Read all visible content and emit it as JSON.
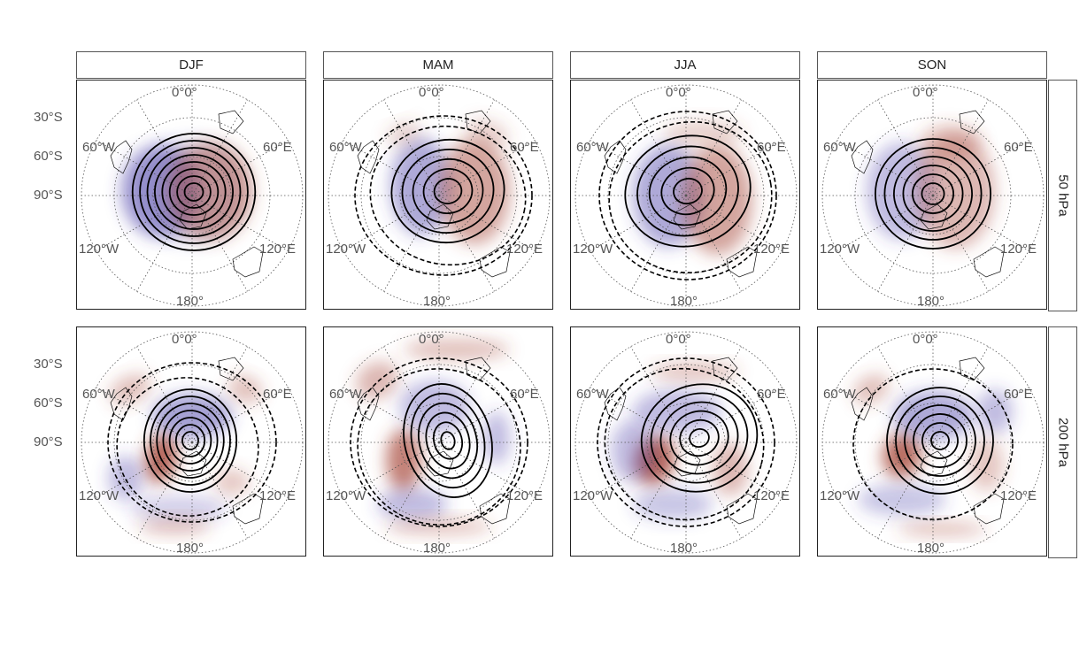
{
  "columns": [
    "DJF",
    "MAM",
    "JJA",
    "SON"
  ],
  "rows": [
    "50 hPa",
    "200 hPa"
  ],
  "latitude_labels": [
    "30°S",
    "60°S",
    "90°S"
  ],
  "longitude_labels": {
    "top": "0°0°",
    "upper_left": "60°W",
    "upper_right": "60°E",
    "lower_left": "120°W",
    "lower_right": "120°E",
    "bottom": "180°"
  },
  "projection": "south-polar-stereographic",
  "colors": {
    "positive": "#a84a3c",
    "negative": "#4a3fa8",
    "contour": "#000000"
  }
}
